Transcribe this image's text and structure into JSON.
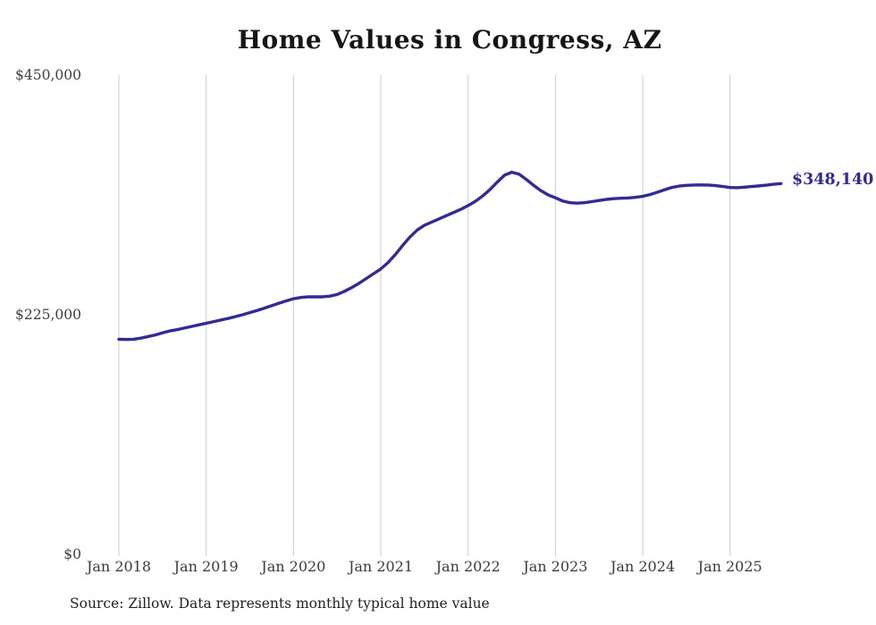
{
  "title": "Home Values in Congress, AZ",
  "source_note": "Source: Zillow. Data represents monthly typical home value",
  "colors": {
    "line": "#312b93",
    "grid": "#cccccc",
    "tick_text": "#3f3f3f",
    "title_text": "#161616",
    "background": "#ffffff"
  },
  "chart_data": {
    "type": "line",
    "title": "Home Values in Congress, AZ",
    "xlabel": "",
    "ylabel": "",
    "unit": "USD",
    "x_start_month": "Jan 2018",
    "x_end_month": "Aug 2025",
    "ylim": [
      0,
      450000
    ],
    "y_ticks": [
      0,
      225000,
      450000
    ],
    "y_tick_labels": [
      "$0",
      "$225,000",
      "$450,000"
    ],
    "x_tick_month_indices": [
      0,
      12,
      24,
      36,
      48,
      60,
      72,
      84
    ],
    "x_tick_labels": [
      "Jan 2018",
      "Jan 2019",
      "Jan 2020",
      "Jan 2021",
      "Jan 2022",
      "Jan 2023",
      "Jan 2024",
      "Jan 2025"
    ],
    "grid": "vertical-yearly-gridlines",
    "legend": "none",
    "last_value": 348140,
    "last_value_label": "$348,140",
    "series": [
      {
        "name": "Monthly typical home value",
        "monthly_values": [
          202000,
          201800,
          202000,
          203000,
          204500,
          206000,
          208000,
          209800,
          211000,
          212500,
          214000,
          215500,
          217000,
          218500,
          220000,
          221500,
          223200,
          225000,
          227000,
          229000,
          231200,
          233500,
          235800,
          238000,
          240000,
          241200,
          241800,
          241800,
          241800,
          242500,
          244000,
          247000,
          250500,
          254500,
          259000,
          263500,
          268000,
          274000,
          281500,
          290000,
          298000,
          304500,
          309000,
          312000,
          315000,
          318000,
          321000,
          324000,
          327500,
          331500,
          336500,
          342500,
          349500,
          356000,
          358800,
          357000,
          352000,
          346500,
          341500,
          337500,
          334800,
          331800,
          330200,
          329800,
          330200,
          331200,
          332300,
          333300,
          334000,
          334400,
          334600,
          335200,
          336200,
          337800,
          340000,
          342300,
          344500,
          345800,
          346500,
          346800,
          346900,
          346800,
          346300,
          345400,
          344500,
          344300,
          344800,
          345400,
          346000,
          346700,
          347500,
          348140
        ]
      }
    ]
  }
}
